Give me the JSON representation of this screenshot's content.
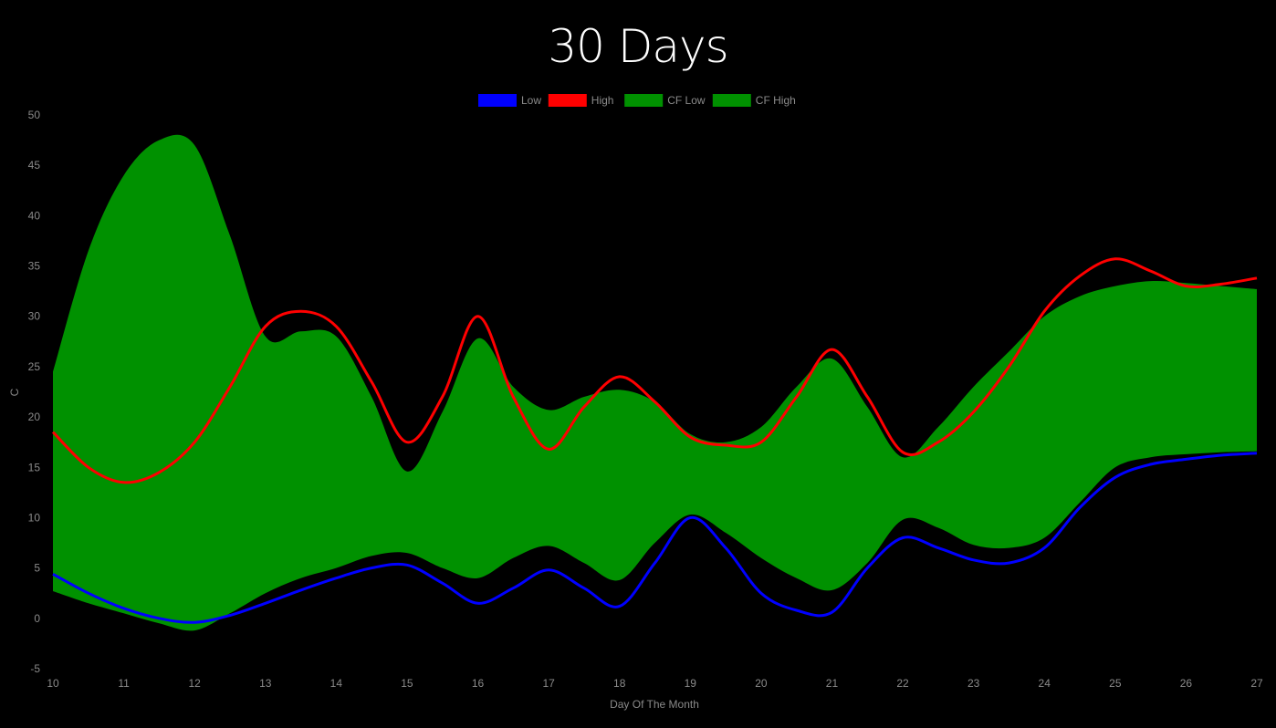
{
  "chart_data": {
    "type": "line",
    "title": "30 Days",
    "xlabel": "Day Of The Month",
    "ylabel": "C",
    "xlim": [
      10,
      27
    ],
    "ylim": [
      -5,
      50
    ],
    "x_ticks": [
      10,
      11,
      12,
      13,
      14,
      15,
      16,
      17,
      18,
      19,
      20,
      21,
      22,
      23,
      24,
      25,
      26,
      27
    ],
    "y_ticks": [
      -5,
      0,
      5,
      10,
      15,
      20,
      25,
      30,
      35,
      40,
      45,
      50
    ],
    "legend_position": "top-center",
    "grid": false,
    "background": "#000000",
    "x": [
      10,
      10.5,
      11,
      11.5,
      12,
      12.5,
      13,
      13.5,
      14,
      14.5,
      15,
      15.5,
      16,
      16.5,
      17,
      17.5,
      18,
      18.5,
      19,
      19.5,
      20,
      20.5,
      21,
      21.5,
      22,
      22.5,
      23,
      23.5,
      24,
      24.5,
      25,
      25.5,
      26,
      26.5,
      27
    ],
    "series": [
      {
        "name": "Low",
        "color": "#0000ff",
        "kind": "line",
        "values": [
          4.4,
          2.5,
          1.0,
          0.0,
          -0.4,
          0.3,
          1.5,
          2.8,
          4.0,
          5.0,
          5.3,
          3.5,
          1.5,
          3.0,
          4.8,
          3.0,
          1.2,
          5.5,
          10.0,
          7.0,
          2.5,
          0.8,
          0.6,
          5.0,
          8.0,
          7.0,
          5.8,
          5.5,
          7.0,
          11.0,
          14.0,
          15.3,
          15.8,
          16.2,
          16.4
        ]
      },
      {
        "name": "High",
        "color": "#ff0000",
        "kind": "line",
        "values": [
          18.5,
          15.0,
          13.5,
          14.5,
          17.5,
          23.0,
          29.0,
          30.5,
          29.0,
          23.5,
          17.5,
          22.0,
          30.0,
          22.0,
          16.8,
          21.0,
          24.0,
          21.5,
          18.0,
          17.2,
          17.5,
          22.0,
          26.7,
          22.0,
          16.5,
          17.5,
          20.5,
          25.0,
          30.5,
          34.0,
          35.7,
          34.5,
          33.0,
          33.2,
          33.8
        ]
      },
      {
        "name": "CF Low",
        "color": "#009100",
        "kind": "band-lower",
        "values": [
          2.7,
          1.5,
          0.5,
          -0.5,
          -1.2,
          0.5,
          2.5,
          4.0,
          5.0,
          6.2,
          6.5,
          5.0,
          4.0,
          6.0,
          7.2,
          5.5,
          3.8,
          7.5,
          10.3,
          8.5,
          6.0,
          4.0,
          2.8,
          5.5,
          9.8,
          9.0,
          7.3,
          7.0,
          8.0,
          11.5,
          15.0,
          16.0,
          16.3,
          16.5,
          16.6
        ]
      },
      {
        "name": "CF High",
        "color": "#009100",
        "kind": "band-upper",
        "values": [
          24.5,
          36.5,
          44.0,
          47.5,
          47.0,
          38.0,
          28.0,
          28.5,
          28.0,
          22.0,
          14.6,
          20.5,
          27.8,
          23.0,
          20.7,
          22.0,
          22.7,
          21.5,
          18.3,
          17.5,
          19.0,
          23.0,
          25.8,
          21.0,
          16.0,
          19.0,
          23.0,
          26.5,
          30.0,
          32.0,
          33.0,
          33.5,
          33.3,
          33.0,
          32.7
        ]
      }
    ]
  }
}
